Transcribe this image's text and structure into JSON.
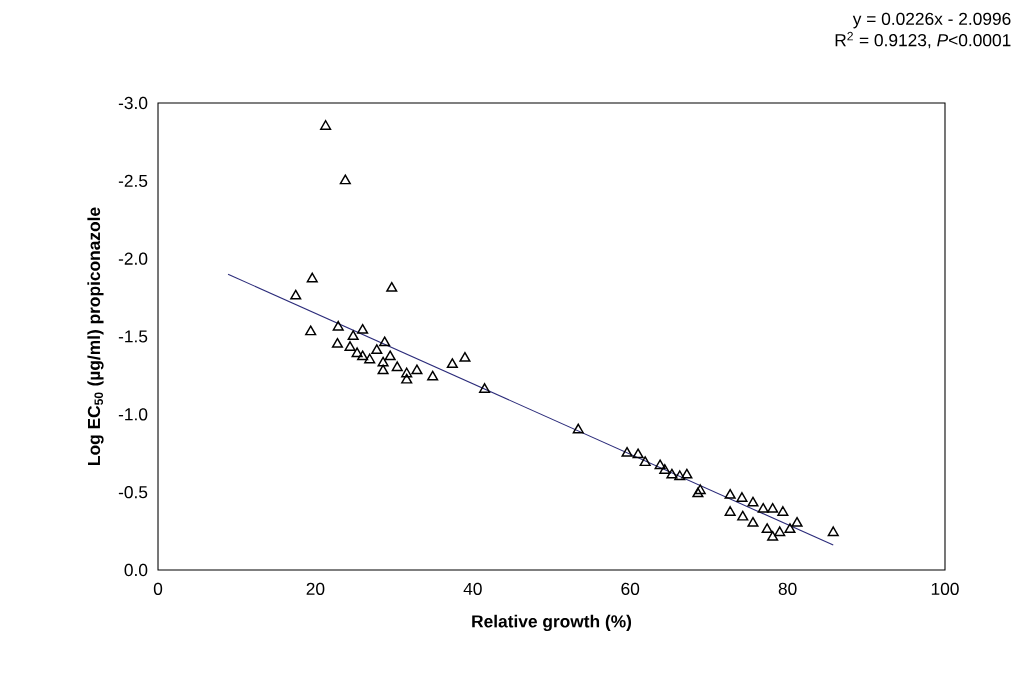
{
  "chart_data": {
    "type": "scatter",
    "xlabel": "Relative growth (%)",
    "ylabel": "Log EC$_{50}$ (µg/ml) propiconazole",
    "annotations": [
      "y = 0.0226x - 2.0996",
      "R$^{2}$ = 0.9123, *P*<0.0001"
    ],
    "xlim": [
      0,
      100
    ],
    "xticks": [
      0,
      20,
      40,
      60,
      80,
      100
    ],
    "ylim": [
      0,
      -3
    ],
    "yticks": [
      {
        "value": 0,
        "label": "0.0"
      },
      {
        "value": -0.5,
        "label": "-0.5"
      },
      {
        "value": -1,
        "label": "-1.0"
      },
      {
        "value": -1.5,
        "label": "-1.5"
      },
      {
        "value": -2,
        "label": "-2.0"
      },
      {
        "value": -2.5,
        "label": "-2.5"
      },
      {
        "value": -3,
        "label": "-3.0"
      }
    ],
    "marker": "triangle",
    "series": [
      {
        "color": "#000000",
        "x": [
          21.3,
          23.8,
          17.5,
          19.6,
          19.4,
          22.9,
          22.8,
          29.7,
          26.0,
          24.8,
          28.8,
          25.3,
          26.9,
          28.6,
          30.4,
          31.6,
          32.9,
          34.9,
          31.6,
          24.4,
          27.8,
          29.5,
          26.0,
          28.6,
          37.4,
          39.0,
          41.5,
          53.4,
          59.6,
          61.0,
          61.9,
          63.8,
          64.4,
          65.3,
          66.3,
          67.2,
          68.9,
          68.6,
          72.7,
          74.2,
          72.7,
          75.6,
          76.9,
          78.1,
          79.4,
          81.2,
          85.8,
          78.1,
          75.6,
          77.4,
          79.0,
          74.3,
          80.3
        ],
        "values": [
          -2.85,
          -2.5,
          -1.76,
          -1.87,
          -1.53,
          -1.56,
          -1.45,
          -1.81,
          -1.54,
          -1.5,
          -1.46,
          -1.39,
          -1.35,
          -1.33,
          -1.3,
          -1.26,
          -1.28,
          -1.24,
          -1.22,
          -1.43,
          -1.41,
          -1.37,
          -1.37,
          -1.28,
          -1.32,
          -1.36,
          -1.16,
          -0.9,
          -0.75,
          -0.74,
          -0.69,
          -0.67,
          -0.64,
          -0.61,
          -0.6,
          -0.61,
          -0.51,
          -0.49,
          -0.48,
          -0.46,
          -0.37,
          -0.43,
          -0.39,
          -0.39,
          -0.37,
          -0.3,
          -0.24,
          -0.21,
          -0.3,
          -0.26,
          -0.24,
          -0.34,
          -0.26
        ]
      },
      {
        "type": "line",
        "color": "#2b2b7a",
        "marker": "none",
        "x": [
          8.9,
          85.8
        ],
        "values": [
          -1.9,
          -0.16
        ]
      }
    ]
  }
}
